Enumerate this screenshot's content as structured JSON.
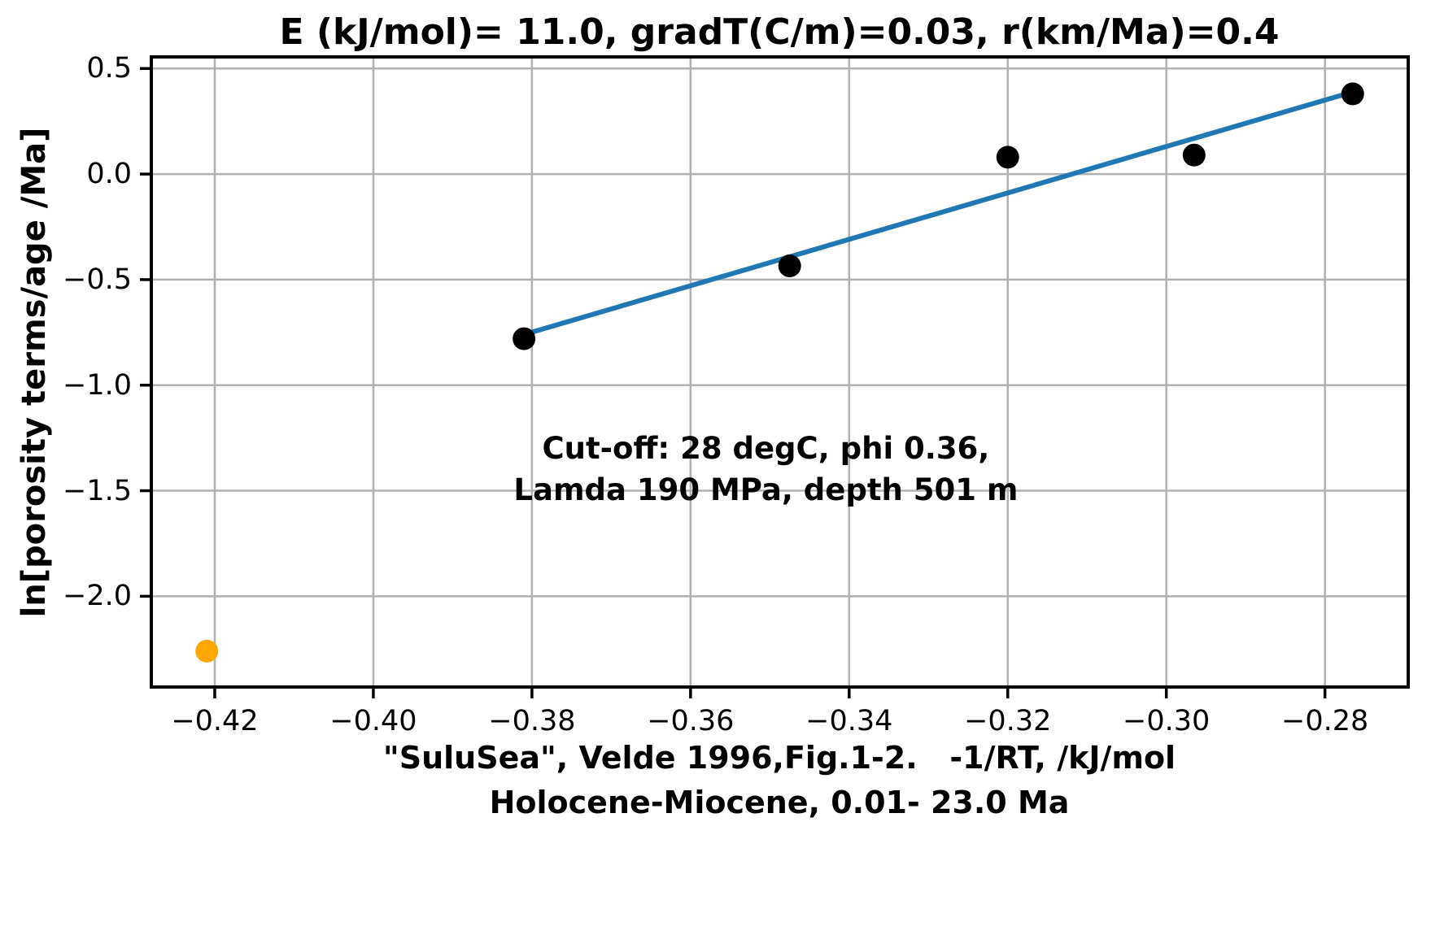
{
  "chart_data": {
    "type": "scatter",
    "title": "E (kJ/mol)= 11.0, gradT(C/m)=0.03, r(km/Ma)=0.4",
    "ylabel": "ln[porosity terms/age /Ma]",
    "xlabel_line1": "\"SuluSea\", Velde 1996,Fig.1-2.   -1/RT, /kJ/mol",
    "xlabel_line2": "Holocene-Miocene, 0.01- 23.0 Ma",
    "annotation_line1": "Cut-off: 28 degC, phi 0.36,",
    "annotation_line2": "Lamda 190 MPa, depth 501 m",
    "annotation_position": [
      -0.3505,
      -1.4
    ],
    "xlim": [
      -0.428,
      -0.2695
    ],
    "ylim": [
      -2.43,
      0.555
    ],
    "grid": true,
    "legend": "none",
    "x_ticks": [
      {
        "v": -0.42,
        "label": "−0.42"
      },
      {
        "v": -0.4,
        "label": "−0.40"
      },
      {
        "v": -0.38,
        "label": "−0.38"
      },
      {
        "v": -0.36,
        "label": "−0.36"
      },
      {
        "v": -0.34,
        "label": "−0.34"
      },
      {
        "v": -0.32,
        "label": "−0.32"
      },
      {
        "v": -0.3,
        "label": "−0.30"
      },
      {
        "v": -0.28,
        "label": "−0.28"
      }
    ],
    "y_ticks": [
      {
        "v": 0.5,
        "label": "0.5"
      },
      {
        "v": 0.0,
        "label": "0.0"
      },
      {
        "v": -0.5,
        "label": "−0.5"
      },
      {
        "v": -1.0,
        "label": "−1.0"
      },
      {
        "v": -1.5,
        "label": "−1.5"
      },
      {
        "v": -2.0,
        "label": "−2.0"
      }
    ],
    "series": [
      {
        "name": "data-points",
        "color": "#000000",
        "marker_radius": 14,
        "points": [
          [
            -0.381,
            -0.78
          ],
          [
            -0.3475,
            -0.435
          ],
          [
            -0.32,
            0.08
          ],
          [
            -0.2965,
            0.09
          ],
          [
            -0.2765,
            0.38
          ]
        ]
      },
      {
        "name": "excluded-point",
        "color": "#ffa500",
        "marker_radius": 14,
        "points": [
          [
            -0.421,
            -2.26
          ]
        ]
      }
    ],
    "trend_line": {
      "color": "#1f77b4",
      "width": 6,
      "from": [
        -0.381,
        -0.76
      ],
      "to": [
        -0.2755,
        0.4
      ]
    },
    "colors": {
      "grid": "#b0b0b0",
      "spine": "#000000",
      "background": "#ffffff"
    }
  }
}
